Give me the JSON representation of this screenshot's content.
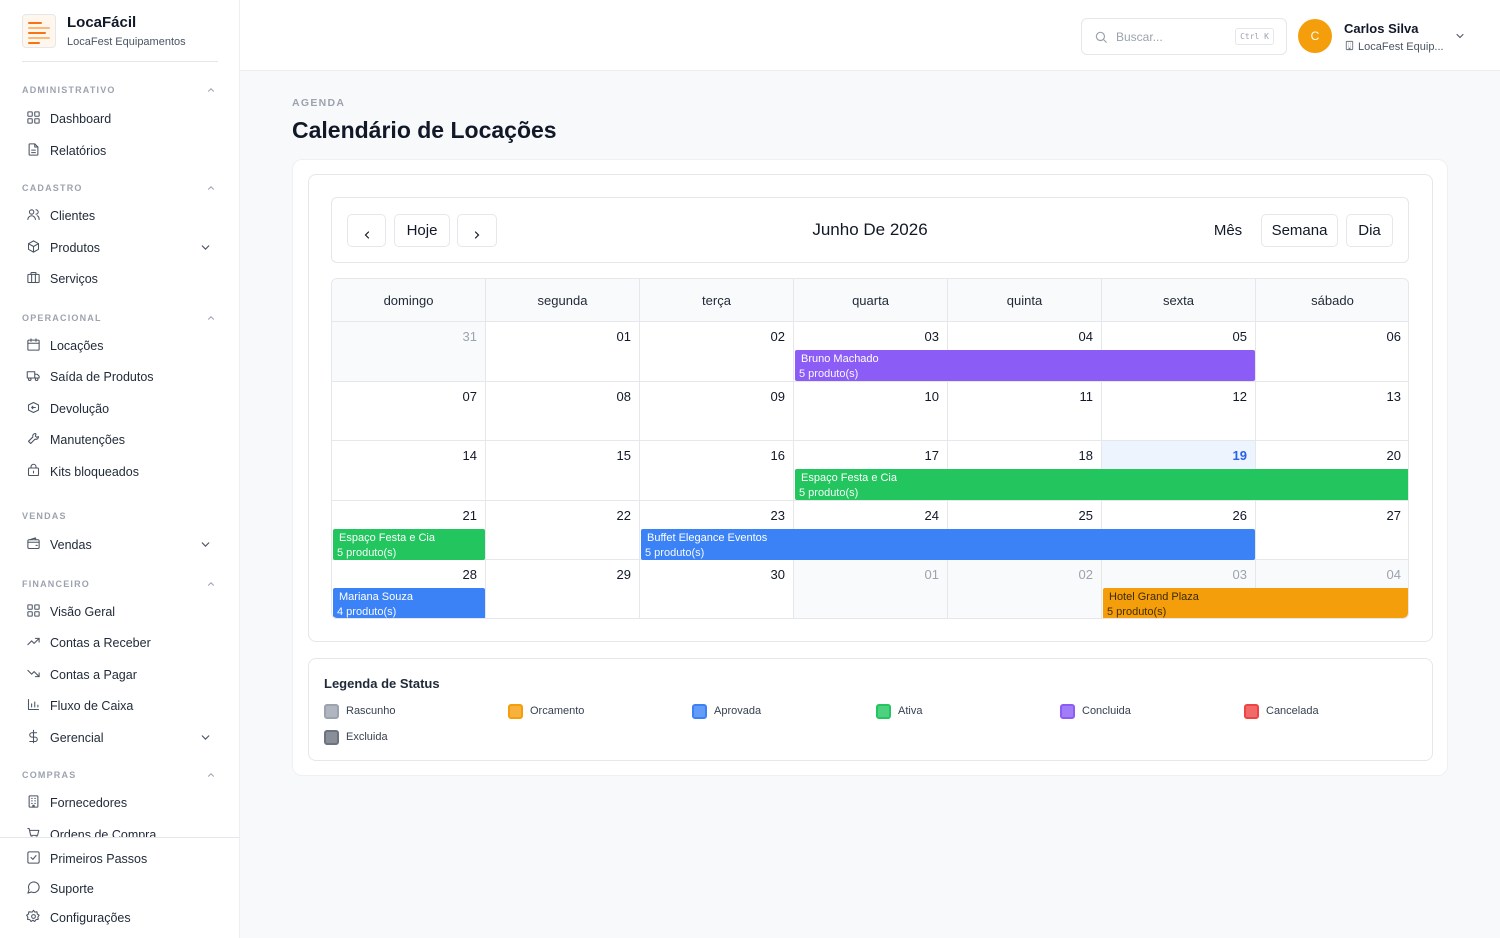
{
  "app": {
    "name": "LocaFácil",
    "company": "LocaFest Equipamentos"
  },
  "sidebar": {
    "sections": [
      {
        "label": "ADMINISTRATIVO",
        "items": [
          {
            "label": "Dashboard",
            "icon": "grid-icon"
          },
          {
            "label": "Relatórios",
            "icon": "file-text-icon"
          }
        ]
      },
      {
        "label": "CADASTRO",
        "items": [
          {
            "label": "Clientes",
            "icon": "users-icon"
          },
          {
            "label": "Produtos",
            "icon": "box-icon"
          },
          {
            "label": "Serviços",
            "icon": "briefcase-icon"
          }
        ]
      },
      {
        "label": "OPERACIONAL",
        "items": [
          {
            "label": "Locações",
            "icon": "calendar-icon"
          },
          {
            "label": "Saída de Produtos",
            "icon": "truck-icon"
          },
          {
            "label": "Devolução",
            "icon": "package-return-icon"
          },
          {
            "label": "Manutenções",
            "icon": "wrench-icon"
          },
          {
            "label": "Kits bloqueados",
            "icon": "blocked-kit-icon"
          }
        ]
      },
      {
        "label": "VENDAS",
        "items": [
          {
            "label": "Vendas",
            "icon": "wallet-icon"
          }
        ]
      },
      {
        "label": "FINANCEIRO",
        "items": [
          {
            "label": "Visão Geral",
            "icon": "grid-icon"
          },
          {
            "label": "Contas a Receber",
            "icon": "trending-up-icon"
          },
          {
            "label": "Contas a Pagar",
            "icon": "trending-down-icon"
          },
          {
            "label": "Fluxo de Caixa",
            "icon": "bar-chart-icon"
          },
          {
            "label": "Gerencial",
            "icon": "dollar-icon"
          }
        ]
      },
      {
        "label": "COMPRAS",
        "items": [
          {
            "label": "Fornecedores",
            "icon": "building-icon"
          },
          {
            "label": "Ordens de Compra",
            "icon": "cart-icon"
          }
        ]
      }
    ],
    "bottom": [
      {
        "label": "Primeiros Passos",
        "icon": "check-square-icon"
      },
      {
        "label": "Suporte",
        "icon": "message-circle-icon"
      },
      {
        "label": "Configurações",
        "icon": "settings-icon"
      }
    ]
  },
  "header": {
    "search_placeholder": "Buscar...",
    "search_shortcut": "Ctrl K",
    "user": {
      "initial": "C",
      "name": "Carlos Silva",
      "company": "LocaFest Equip..."
    }
  },
  "page": {
    "eyebrow": "AGENDA",
    "title": "Calendário de Locações"
  },
  "calendar": {
    "today_label": "Hoje",
    "month_title": "Junho De 2026",
    "views": [
      "Mês",
      "Semana",
      "Dia"
    ],
    "active_view": "Mês",
    "weekdays": [
      "domingo",
      "segunda",
      "terça",
      "quarta",
      "quinta",
      "sexta",
      "sábado"
    ],
    "weeks": [
      [
        {
          "d": "31",
          "other": true
        },
        {
          "d": "01"
        },
        {
          "d": "02"
        },
        {
          "d": "03"
        },
        {
          "d": "04"
        },
        {
          "d": "05"
        },
        {
          "d": "06"
        }
      ],
      [
        {
          "d": "07"
        },
        {
          "d": "08"
        },
        {
          "d": "09"
        },
        {
          "d": "10"
        },
        {
          "d": "11"
        },
        {
          "d": "12"
        },
        {
          "d": "13"
        }
      ],
      [
        {
          "d": "14"
        },
        {
          "d": "15"
        },
        {
          "d": "16"
        },
        {
          "d": "17"
        },
        {
          "d": "18"
        },
        {
          "d": "19",
          "today": true
        },
        {
          "d": "20"
        }
      ],
      [
        {
          "d": "21"
        },
        {
          "d": "22"
        },
        {
          "d": "23"
        },
        {
          "d": "24"
        },
        {
          "d": "25"
        },
        {
          "d": "26"
        },
        {
          "d": "27"
        }
      ],
      [
        {
          "d": "28"
        },
        {
          "d": "29"
        },
        {
          "d": "30"
        },
        {
          "d": "01",
          "other": true
        },
        {
          "d": "02",
          "other": true
        },
        {
          "d": "03",
          "other": true
        },
        {
          "d": "04",
          "other": true
        }
      ]
    ],
    "events": [
      {
        "title": "Bruno Machado",
        "subtitle": "5 produto(s)",
        "status": "Concluida",
        "week": 0,
        "start_day": 3,
        "end_day": 5
      },
      {
        "title": "Espaço Festa e Cia",
        "subtitle": "5 produto(s)",
        "status": "Ativa",
        "week": 2,
        "start_day": 3,
        "end_day": 6
      },
      {
        "title": "Espaço Festa e Cia",
        "subtitle": "5 produto(s)",
        "status": "Ativa",
        "week": 3,
        "start_day": 0,
        "end_day": 0
      },
      {
        "title": "Buffet Elegance Eventos",
        "subtitle": "5 produto(s)",
        "status": "Aprovada",
        "week": 3,
        "start_day": 2,
        "end_day": 5
      },
      {
        "title": "Mariana Souza",
        "subtitle": "4 produto(s)",
        "status": "Aprovada",
        "week": 4,
        "start_day": 0,
        "end_day": 0
      },
      {
        "title": "Hotel Grand Plaza",
        "subtitle": "5 produto(s)",
        "status": "Orcamento",
        "week": 4,
        "start_day": 5,
        "end_day": 6
      }
    ]
  },
  "legend": {
    "title": "Legenda de Status",
    "items": [
      {
        "label": "Rascunho",
        "color": "#9ca3af"
      },
      {
        "label": "Orcamento",
        "color": "#f59e0b"
      },
      {
        "label": "Aprovada",
        "color": "#3b82f6"
      },
      {
        "label": "Ativa",
        "color": "#22c55e"
      },
      {
        "label": "Concluida",
        "color": "#8b5cf6"
      },
      {
        "label": "Cancelada",
        "color": "#ef4444"
      },
      {
        "label": "Excluida",
        "color": "#6b7280"
      }
    ]
  }
}
